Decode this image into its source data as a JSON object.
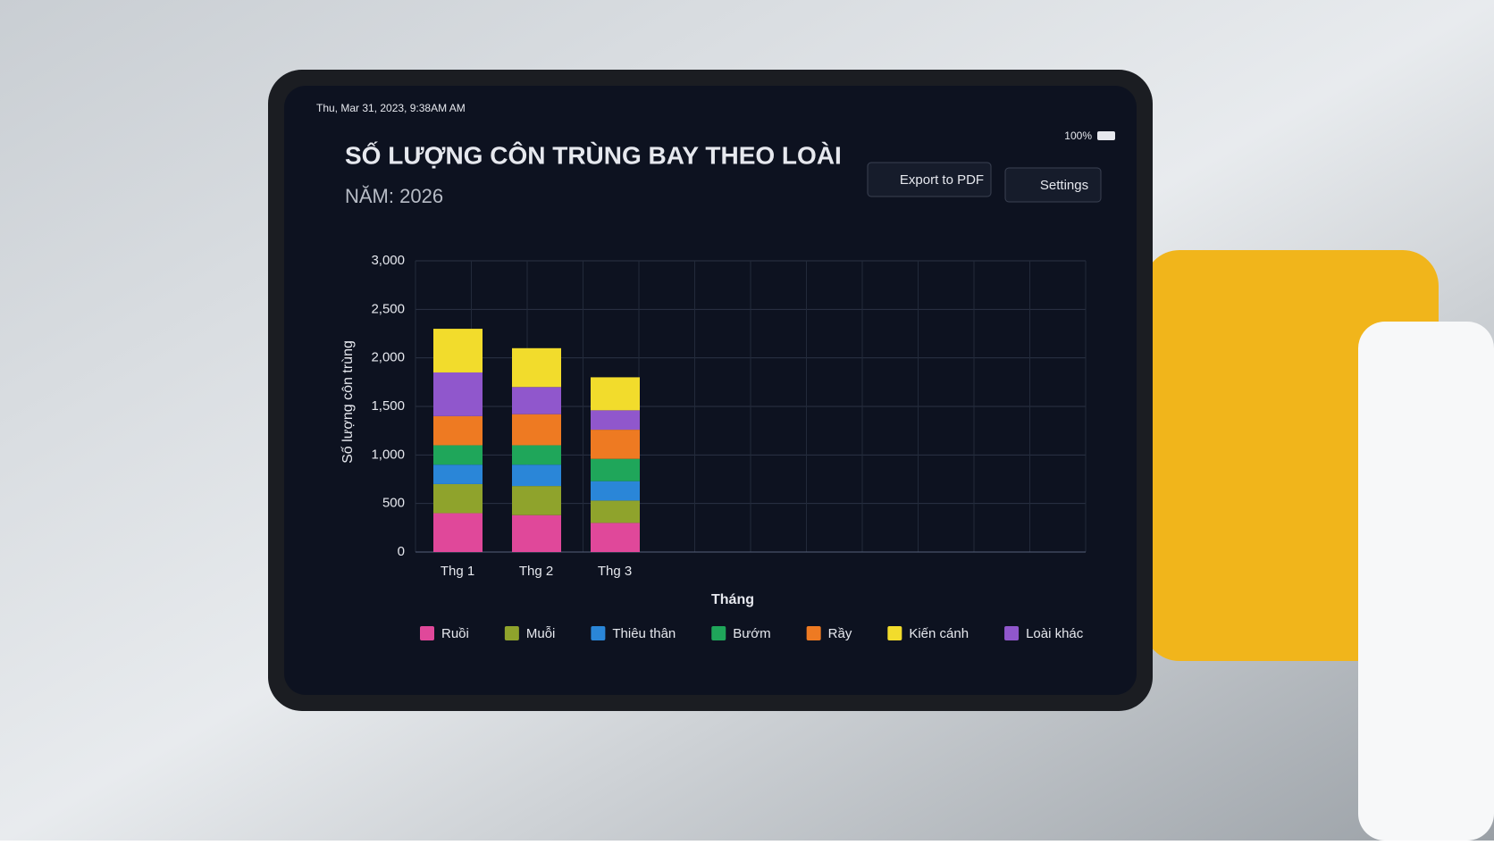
{
  "status_bar": {
    "datetime": "Thu, Mar 31, 2023, 9:38AM AM",
    "battery": "100%"
  },
  "buttons": {
    "export": "Export to PDF",
    "settings": "Settings"
  },
  "chart_data": {
    "type": "stacked_bar",
    "title": "SỐ LƯỢNG CÔN TRÙNG BAY THEO LOÀI",
    "subtitle": "NĂM: 2026",
    "x_label": "Tháng",
    "y_label": "Số lượng côn trùng",
    "categories": [
      "Thg 1",
      "Thg 2",
      "Thg 3"
    ],
    "series": [
      {
        "name": "Ruồi",
        "color": "#e0489a",
        "values": [
          400,
          380,
          300
        ]
      },
      {
        "name": "Muỗi",
        "color": "#8fa32c",
        "values": [
          300,
          300,
          230
        ]
      },
      {
        "name": "Thiêu thân",
        "color": "#2a86d8",
        "values": [
          200,
          220,
          200
        ]
      },
      {
        "name": "Bướm",
        "color": "#1fa65a",
        "values": [
          200,
          200,
          230
        ]
      },
      {
        "name": "Rầy",
        "color": "#ee7a22",
        "values": [
          300,
          320,
          300
        ]
      },
      {
        "name": "Kiến cánh",
        "color": "#f2dc2c",
        "values": [
          450,
          400,
          340
        ]
      },
      {
        "name": "Loài khác",
        "color": "#9057cc",
        "values": [
          450,
          280,
          200
        ]
      }
    ],
    "ylim": [
      0,
      3000
    ],
    "yticks": [
      0,
      500,
      {
        "value": 1000,
        "label": "1,000"
      },
      {
        "value": 1500,
        "label": "1,500"
      },
      {
        "value": 2000,
        "label": "2,000"
      },
      {
        "value": 2500,
        "label": "2,500"
      },
      {
        "value": 3000,
        "label": "3,000"
      }
    ],
    "grid": true,
    "legend": "bottom"
  }
}
